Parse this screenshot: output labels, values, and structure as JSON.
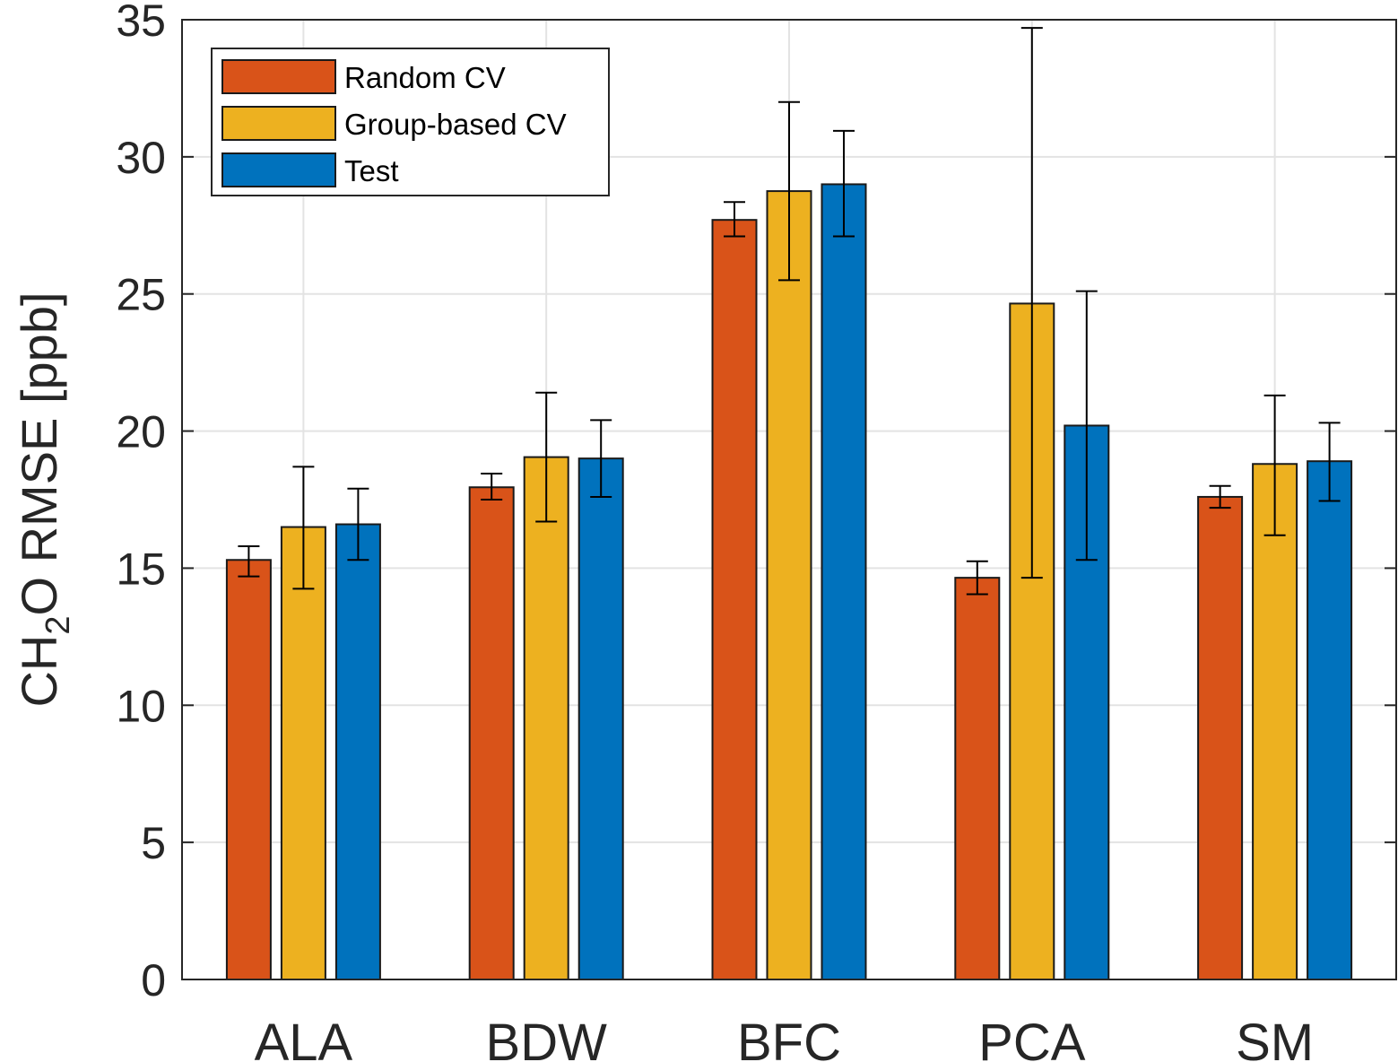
{
  "chart_data": {
    "type": "bar",
    "title": "",
    "xlabel": "",
    "ylabel": "CH2O RMSE [ppb]",
    "ylabel_parts": {
      "prefix": "CH",
      "subscript": "2",
      "suffix": "O RMSE [ppb]"
    },
    "categories": [
      "ALA",
      "BDW",
      "BFC",
      "PCA",
      "SM"
    ],
    "ylim": [
      0,
      35
    ],
    "yticks": [
      0,
      5,
      10,
      15,
      20,
      25,
      30,
      35
    ],
    "grid": true,
    "legend_position": "top-left",
    "series": [
      {
        "name": "Random CV",
        "color": "#D95319",
        "values": [
          15.3,
          17.95,
          27.7,
          14.65,
          17.6
        ],
        "err_low": [
          14.7,
          17.5,
          27.1,
          14.05,
          17.2
        ],
        "err_high": [
          15.8,
          18.45,
          28.35,
          15.25,
          18.0
        ]
      },
      {
        "name": "Group-based CV",
        "color": "#EDB120",
        "values": [
          16.5,
          19.05,
          28.75,
          24.65,
          18.8
        ],
        "err_low": [
          14.25,
          16.7,
          25.5,
          14.65,
          16.2
        ],
        "err_high": [
          18.7,
          21.4,
          32.0,
          34.7,
          21.3
        ]
      },
      {
        "name": "Test",
        "color": "#0072BD",
        "values": [
          16.6,
          19.0,
          29.0,
          20.2,
          18.9
        ],
        "err_low": [
          15.3,
          17.6,
          27.1,
          15.3,
          17.45
        ],
        "err_high": [
          17.9,
          20.4,
          30.95,
          25.1,
          20.3
        ]
      }
    ]
  }
}
